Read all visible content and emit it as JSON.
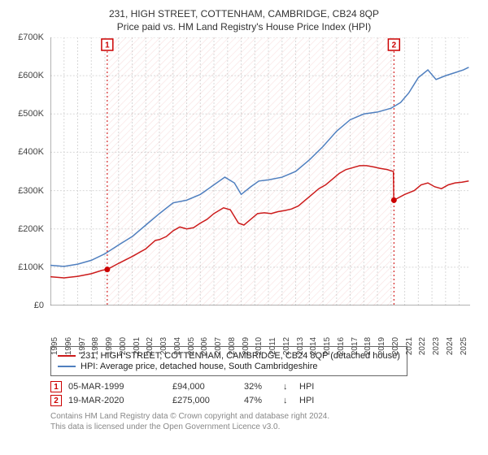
{
  "title": "231, HIGH STREET, COTTENHAM, CAMBRIDGE, CB24 8QP",
  "subtitle": "Price paid vs. HM Land Registry's House Price Index (HPI)",
  "chart": {
    "type": "line",
    "xlim": [
      1995,
      2025.8
    ],
    "ylim": [
      0,
      700000
    ],
    "ytick_step": 100000,
    "ytick_labels": [
      "£0",
      "£100K",
      "£200K",
      "£300K",
      "£400K",
      "£500K",
      "£600K",
      "£700K"
    ],
    "xticks": [
      1995,
      1996,
      1997,
      1998,
      1999,
      2000,
      2001,
      2002,
      2003,
      2004,
      2005,
      2006,
      2007,
      2008,
      2009,
      2010,
      2011,
      2012,
      2013,
      2014,
      2015,
      2016,
      2017,
      2018,
      2019,
      2020,
      2021,
      2022,
      2023,
      2024,
      2025
    ],
    "background_color": "#ffffff",
    "grid_color": "#d8d8d8",
    "hatch_color": "#cc0000",
    "series": {
      "property": {
        "color": "#cc1b1b",
        "width": 1.5,
        "data": [
          [
            1995.0,
            75000
          ],
          [
            1996.0,
            72000
          ],
          [
            1997.0,
            76000
          ],
          [
            1998.0,
            83000
          ],
          [
            1998.8,
            92000
          ],
          [
            1999.17,
            94000
          ],
          [
            2000.0,
            110000
          ],
          [
            2001.0,
            128000
          ],
          [
            2002.0,
            148000
          ],
          [
            2002.7,
            170000
          ],
          [
            2003.0,
            172000
          ],
          [
            2003.5,
            180000
          ],
          [
            2004.0,
            195000
          ],
          [
            2004.5,
            205000
          ],
          [
            2005.0,
            200000
          ],
          [
            2005.5,
            203000
          ],
          [
            2006.0,
            215000
          ],
          [
            2006.5,
            225000
          ],
          [
            2007.0,
            240000
          ],
          [
            2007.7,
            255000
          ],
          [
            2008.2,
            250000
          ],
          [
            2008.8,
            215000
          ],
          [
            2009.2,
            210000
          ],
          [
            2009.7,
            225000
          ],
          [
            2010.2,
            240000
          ],
          [
            2010.7,
            242000
          ],
          [
            2011.2,
            240000
          ],
          [
            2011.7,
            245000
          ],
          [
            2012.2,
            248000
          ],
          [
            2012.7,
            252000
          ],
          [
            2013.2,
            260000
          ],
          [
            2013.7,
            275000
          ],
          [
            2014.2,
            290000
          ],
          [
            2014.7,
            305000
          ],
          [
            2015.2,
            315000
          ],
          [
            2015.7,
            330000
          ],
          [
            2016.2,
            345000
          ],
          [
            2016.7,
            355000
          ],
          [
            2017.2,
            360000
          ],
          [
            2017.7,
            365000
          ],
          [
            2018.2,
            365000
          ],
          [
            2018.7,
            362000
          ],
          [
            2019.2,
            358000
          ],
          [
            2019.7,
            355000
          ],
          [
            2020.17,
            350000
          ],
          [
            2020.2,
            275000
          ],
          [
            2021.0,
            290000
          ],
          [
            2021.7,
            300000
          ],
          [
            2022.2,
            315000
          ],
          [
            2022.7,
            320000
          ],
          [
            2023.2,
            310000
          ],
          [
            2023.7,
            305000
          ],
          [
            2024.2,
            315000
          ],
          [
            2024.7,
            320000
          ],
          [
            2025.2,
            322000
          ],
          [
            2025.7,
            325000
          ]
        ]
      },
      "hpi": {
        "color": "#4f7fbf",
        "width": 1.5,
        "data": [
          [
            1995.0,
            105000
          ],
          [
            1996.0,
            102000
          ],
          [
            1997.0,
            108000
          ],
          [
            1998.0,
            118000
          ],
          [
            1999.0,
            135000
          ],
          [
            2000.0,
            158000
          ],
          [
            2001.0,
            180000
          ],
          [
            2002.0,
            210000
          ],
          [
            2003.0,
            240000
          ],
          [
            2004.0,
            268000
          ],
          [
            2005.0,
            275000
          ],
          [
            2006.0,
            290000
          ],
          [
            2007.0,
            315000
          ],
          [
            2007.8,
            335000
          ],
          [
            2008.5,
            320000
          ],
          [
            2009.0,
            290000
          ],
          [
            2009.7,
            310000
          ],
          [
            2010.3,
            325000
          ],
          [
            2011.0,
            328000
          ],
          [
            2012.0,
            335000
          ],
          [
            2013.0,
            350000
          ],
          [
            2014.0,
            380000
          ],
          [
            2015.0,
            415000
          ],
          [
            2016.0,
            455000
          ],
          [
            2017.0,
            485000
          ],
          [
            2018.0,
            500000
          ],
          [
            2019.0,
            505000
          ],
          [
            2020.0,
            515000
          ],
          [
            2020.7,
            530000
          ],
          [
            2021.3,
            555000
          ],
          [
            2022.0,
            595000
          ],
          [
            2022.7,
            615000
          ],
          [
            2023.3,
            590000
          ],
          [
            2024.0,
            600000
          ],
          [
            2024.7,
            608000
          ],
          [
            2025.3,
            615000
          ],
          [
            2025.7,
            622000
          ]
        ]
      }
    },
    "markers": [
      {
        "n": "1",
        "x": 1999.17,
        "y": 94000
      },
      {
        "n": "2",
        "x": 2020.21,
        "y": 275000
      }
    ]
  },
  "legend": {
    "rows": [
      {
        "color": "#cc1b1b",
        "label": "231, HIGH STREET, COTTENHAM, CAMBRIDGE, CB24 8QP (detached house)"
      },
      {
        "color": "#4f7fbf",
        "label": "HPI: Average price, detached house, South Cambridgeshire"
      }
    ]
  },
  "sales": [
    {
      "n": "1",
      "date": "05-MAR-1999",
      "price": "£94,000",
      "pct": "32%",
      "arrow": "↓",
      "hpi": "HPI"
    },
    {
      "n": "2",
      "date": "19-MAR-2020",
      "price": "£275,000",
      "pct": "47%",
      "arrow": "↓",
      "hpi": "HPI"
    }
  ],
  "footer_line1": "Contains HM Land Registry data © Crown copyright and database right 2024.",
  "footer_line2": "This data is licensed under the Open Government Licence v3.0."
}
